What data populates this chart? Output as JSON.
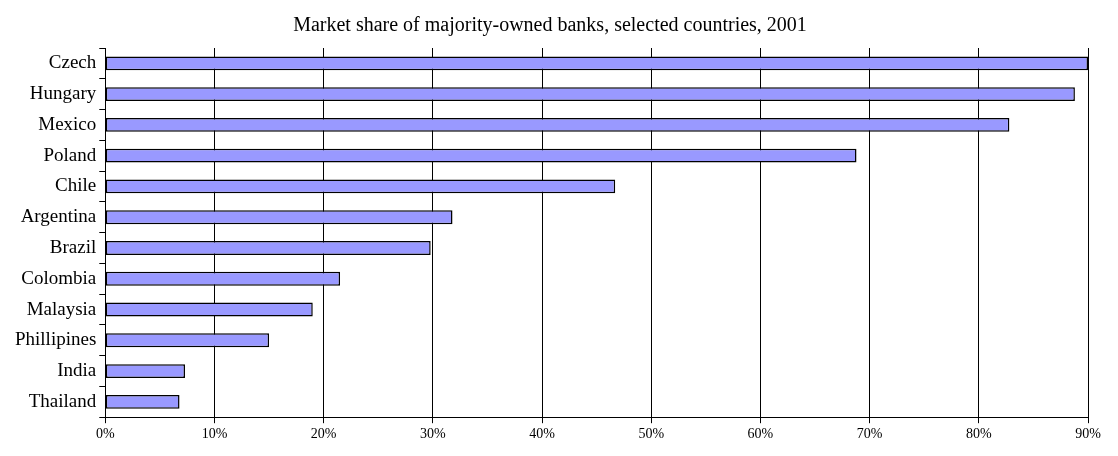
{
  "chart_data": {
    "type": "bar",
    "orientation": "horizontal",
    "title": "Market share of majority-owned banks, selected countries, 2001",
    "categories": [
      "Czech",
      "Hungary",
      "Mexico",
      "Poland",
      "Chile",
      "Argentina",
      "Brazil",
      "Colombia",
      "Malaysia",
      "Phillipines",
      "India",
      "Thailand"
    ],
    "values": [
      90,
      88.8,
      82.8,
      68.8,
      46.7,
      31.8,
      29.8,
      21.5,
      19.0,
      15.0,
      7.3,
      6.8
    ],
    "color": "#9999ff",
    "xlim": [
      0,
      90
    ],
    "xticks": [
      {
        "value": 0,
        "label": "0%"
      },
      {
        "value": 10,
        "label": "10%"
      },
      {
        "value": 20,
        "label": "20%"
      },
      {
        "value": 30,
        "label": "30%"
      },
      {
        "value": 40,
        "label": "40%"
      },
      {
        "value": 50,
        "label": "50%"
      },
      {
        "value": 60,
        "label": "60%"
      },
      {
        "value": 70,
        "label": "70%"
      },
      {
        "value": 80,
        "label": "80%"
      },
      {
        "value": 90,
        "label": "90%"
      }
    ],
    "grid": "x",
    "legend": false
  }
}
